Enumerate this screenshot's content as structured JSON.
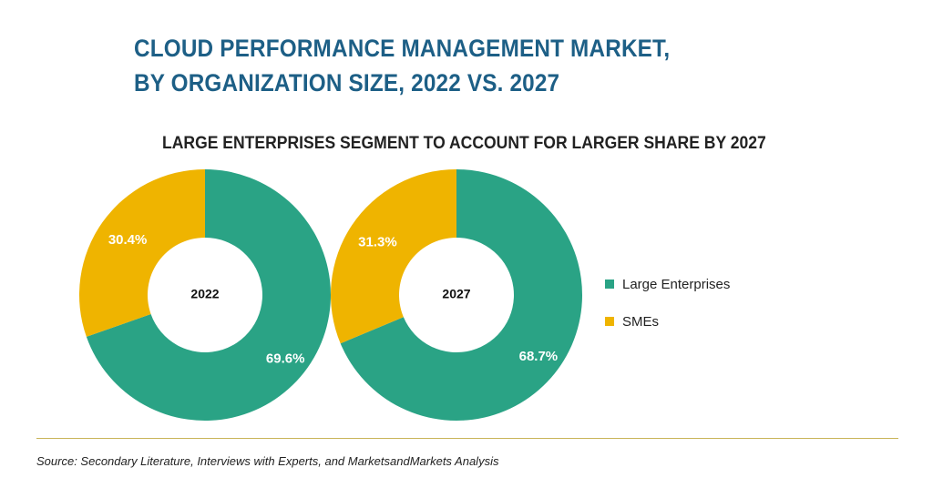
{
  "title_lines": [
    "CLOUD PERFORMANCE MANAGEMENT MARKET,",
    "BY ORGANIZATION SIZE, 2022 VS. 2027"
  ],
  "subtitle": "LARGE ENTERPRISES SEGMENT TO ACCOUNT FOR LARGER SHARE BY 2027",
  "source": "Source: Secondary Literature, Interviews with Experts, and MarketsandMarkets Analysis",
  "colors": {
    "large_enterprises": "#2aa385",
    "smes": "#efb400"
  },
  "chart_data": [
    {
      "type": "pie",
      "center_label": "2022",
      "slices": [
        {
          "name": "Large Enterprises",
          "value": 69.6,
          "label": "69.6%"
        },
        {
          "name": "SMEs",
          "value": 30.4,
          "label": "30.4%"
        }
      ]
    },
    {
      "type": "pie",
      "center_label": "2027",
      "slices": [
        {
          "name": "Large Enterprises",
          "value": 68.7,
          "label": "68.7%"
        },
        {
          "name": "SMEs",
          "value": 31.3,
          "label": "31.3%"
        }
      ]
    }
  ],
  "legend": {
    "placement": "right",
    "items": [
      {
        "label": "Large Enterprises",
        "color_key": "large_enterprises"
      },
      {
        "label": "SMEs",
        "color_key": "smes"
      }
    ]
  }
}
